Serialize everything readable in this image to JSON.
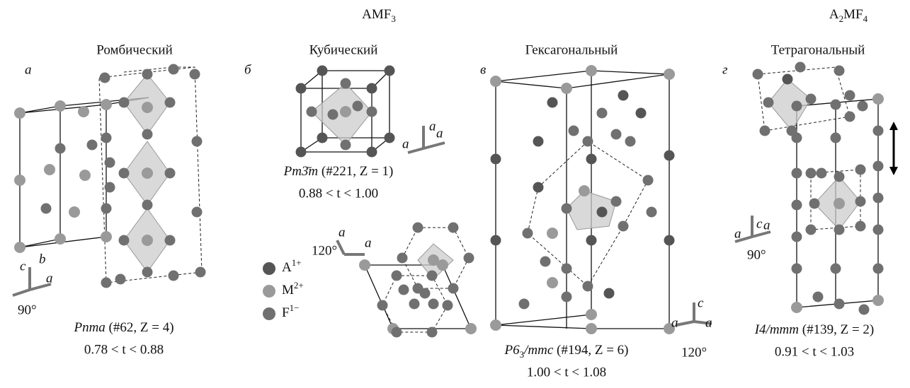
{
  "headers": [
    {
      "base": "AMF",
      "sub": "3"
    },
    {
      "base": "A",
      "sub": "2",
      "base2": "MF",
      "sub2": "4"
    }
  ],
  "panels": [
    {
      "letter": "а",
      "title": "Ромбический",
      "space_group": "Pnma",
      "rest": "(#62, Z = 4)",
      "tolerance": "0.78 < t < 0.88",
      "axes": [
        "c",
        "a",
        "b"
      ],
      "angle": "90°"
    },
    {
      "letter": "б",
      "title": "Кубический",
      "space_group": "Pm3̄m",
      "rest": "(#221, Z = 1)",
      "tolerance": "0.88 < t < 1.00",
      "axes": [
        "a",
        "a",
        "a"
      ],
      "axes2": [
        "a",
        "a"
      ],
      "angle2": "120°"
    },
    {
      "letter": "в",
      "title": "Гексагональный",
      "space_group": "P6",
      "sg_sub": "3",
      "sg_tail": "/mmc",
      "rest": "(#194, Z = 6)",
      "tolerance": "1.00 < t < 1.08",
      "axes": [
        "c",
        "a",
        "a"
      ],
      "angle": "120°"
    },
    {
      "letter": "г",
      "title": "Тетрагональный",
      "space_group": "I4/mmm",
      "rest": "(#139, Z = 2)",
      "tolerance": "0.91 < t < 1.03",
      "axes": [
        "c",
        "a",
        "a"
      ],
      "angle": "90°"
    }
  ],
  "legend": [
    {
      "label": "A",
      "sup": "1+"
    },
    {
      "label": "M",
      "sup": "2+"
    },
    {
      "label": "F",
      "sup": "1−"
    }
  ]
}
